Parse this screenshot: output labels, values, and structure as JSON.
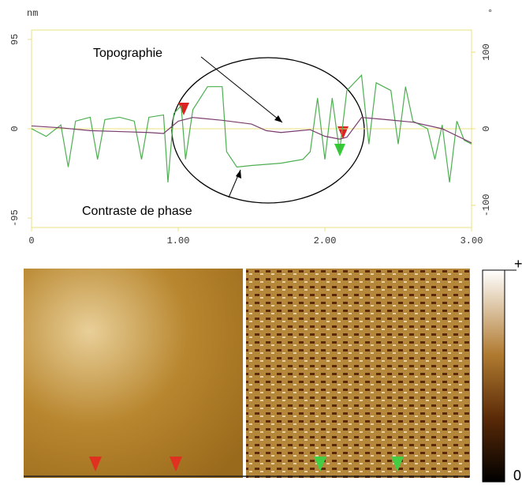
{
  "chart_data": {
    "type": "line",
    "left_unit": "nm",
    "right_unit": "°",
    "annotations": [
      "Topographie",
      "Contraste de phase"
    ],
    "xlim": [
      0,
      3.0
    ],
    "xticks": [
      0,
      {
        "value": 1,
        "label": "1.00"
      },
      {
        "value": 2,
        "label": "2.00"
      },
      {
        "value": 3,
        "label": "3.00"
      }
    ],
    "ylim": [
      -105,
      105
    ],
    "yticks": [
      -95,
      0,
      95
    ],
    "y2lim": [
      -129,
      129
    ],
    "y2ticks": [
      -100,
      0,
      100
    ],
    "series": [
      {
        "color": "#7a3c6e",
        "x": [
          0,
          0.2,
          0.4,
          0.6,
          0.8,
          0.9,
          1.0,
          1.1,
          1.3,
          1.5,
          1.6,
          1.7,
          1.9,
          2.0,
          2.1,
          2.15,
          2.25,
          2.4,
          2.6,
          2.8,
          3.0
        ],
        "values": [
          3,
          1,
          -2,
          -3,
          -4,
          -5,
          8,
          12,
          9,
          5,
          -2,
          -4,
          -1,
          -8,
          -11,
          -9,
          12,
          10,
          7,
          0,
          -15
        ]
      },
      {
        "color": "#4caf50",
        "axis": "y2",
        "x": [
          0,
          0.1,
          0.2,
          0.25,
          0.3,
          0.4,
          0.45,
          0.5,
          0.6,
          0.7,
          0.75,
          0.8,
          0.9,
          0.93,
          0.97,
          1.02,
          1.05,
          1.1,
          1.2,
          1.3,
          1.33,
          1.4,
          1.5,
          1.7,
          1.85,
          1.9,
          1.95,
          2.0,
          2.05,
          2.1,
          2.15,
          2.2,
          2.25,
          2.3,
          2.35,
          2.45,
          2.5,
          2.55,
          2.6,
          2.7,
          2.75,
          2.8,
          2.85,
          2.9,
          2.95,
          3.0
        ],
        "values": [
          0,
          -10,
          5,
          -50,
          10,
          15,
          -40,
          12,
          15,
          10,
          -40,
          15,
          18,
          -70,
          20,
          30,
          -40,
          25,
          55,
          55,
          -30,
          -50,
          -48,
          -45,
          -40,
          -30,
          40,
          -40,
          40,
          -30,
          50,
          60,
          70,
          -20,
          60,
          50,
          -20,
          55,
          10,
          0,
          -40,
          5,
          -70,
          10,
          -15,
          -20
        ]
      }
    ],
    "colorbar_labels": [
      "+",
      "0"
    ]
  }
}
